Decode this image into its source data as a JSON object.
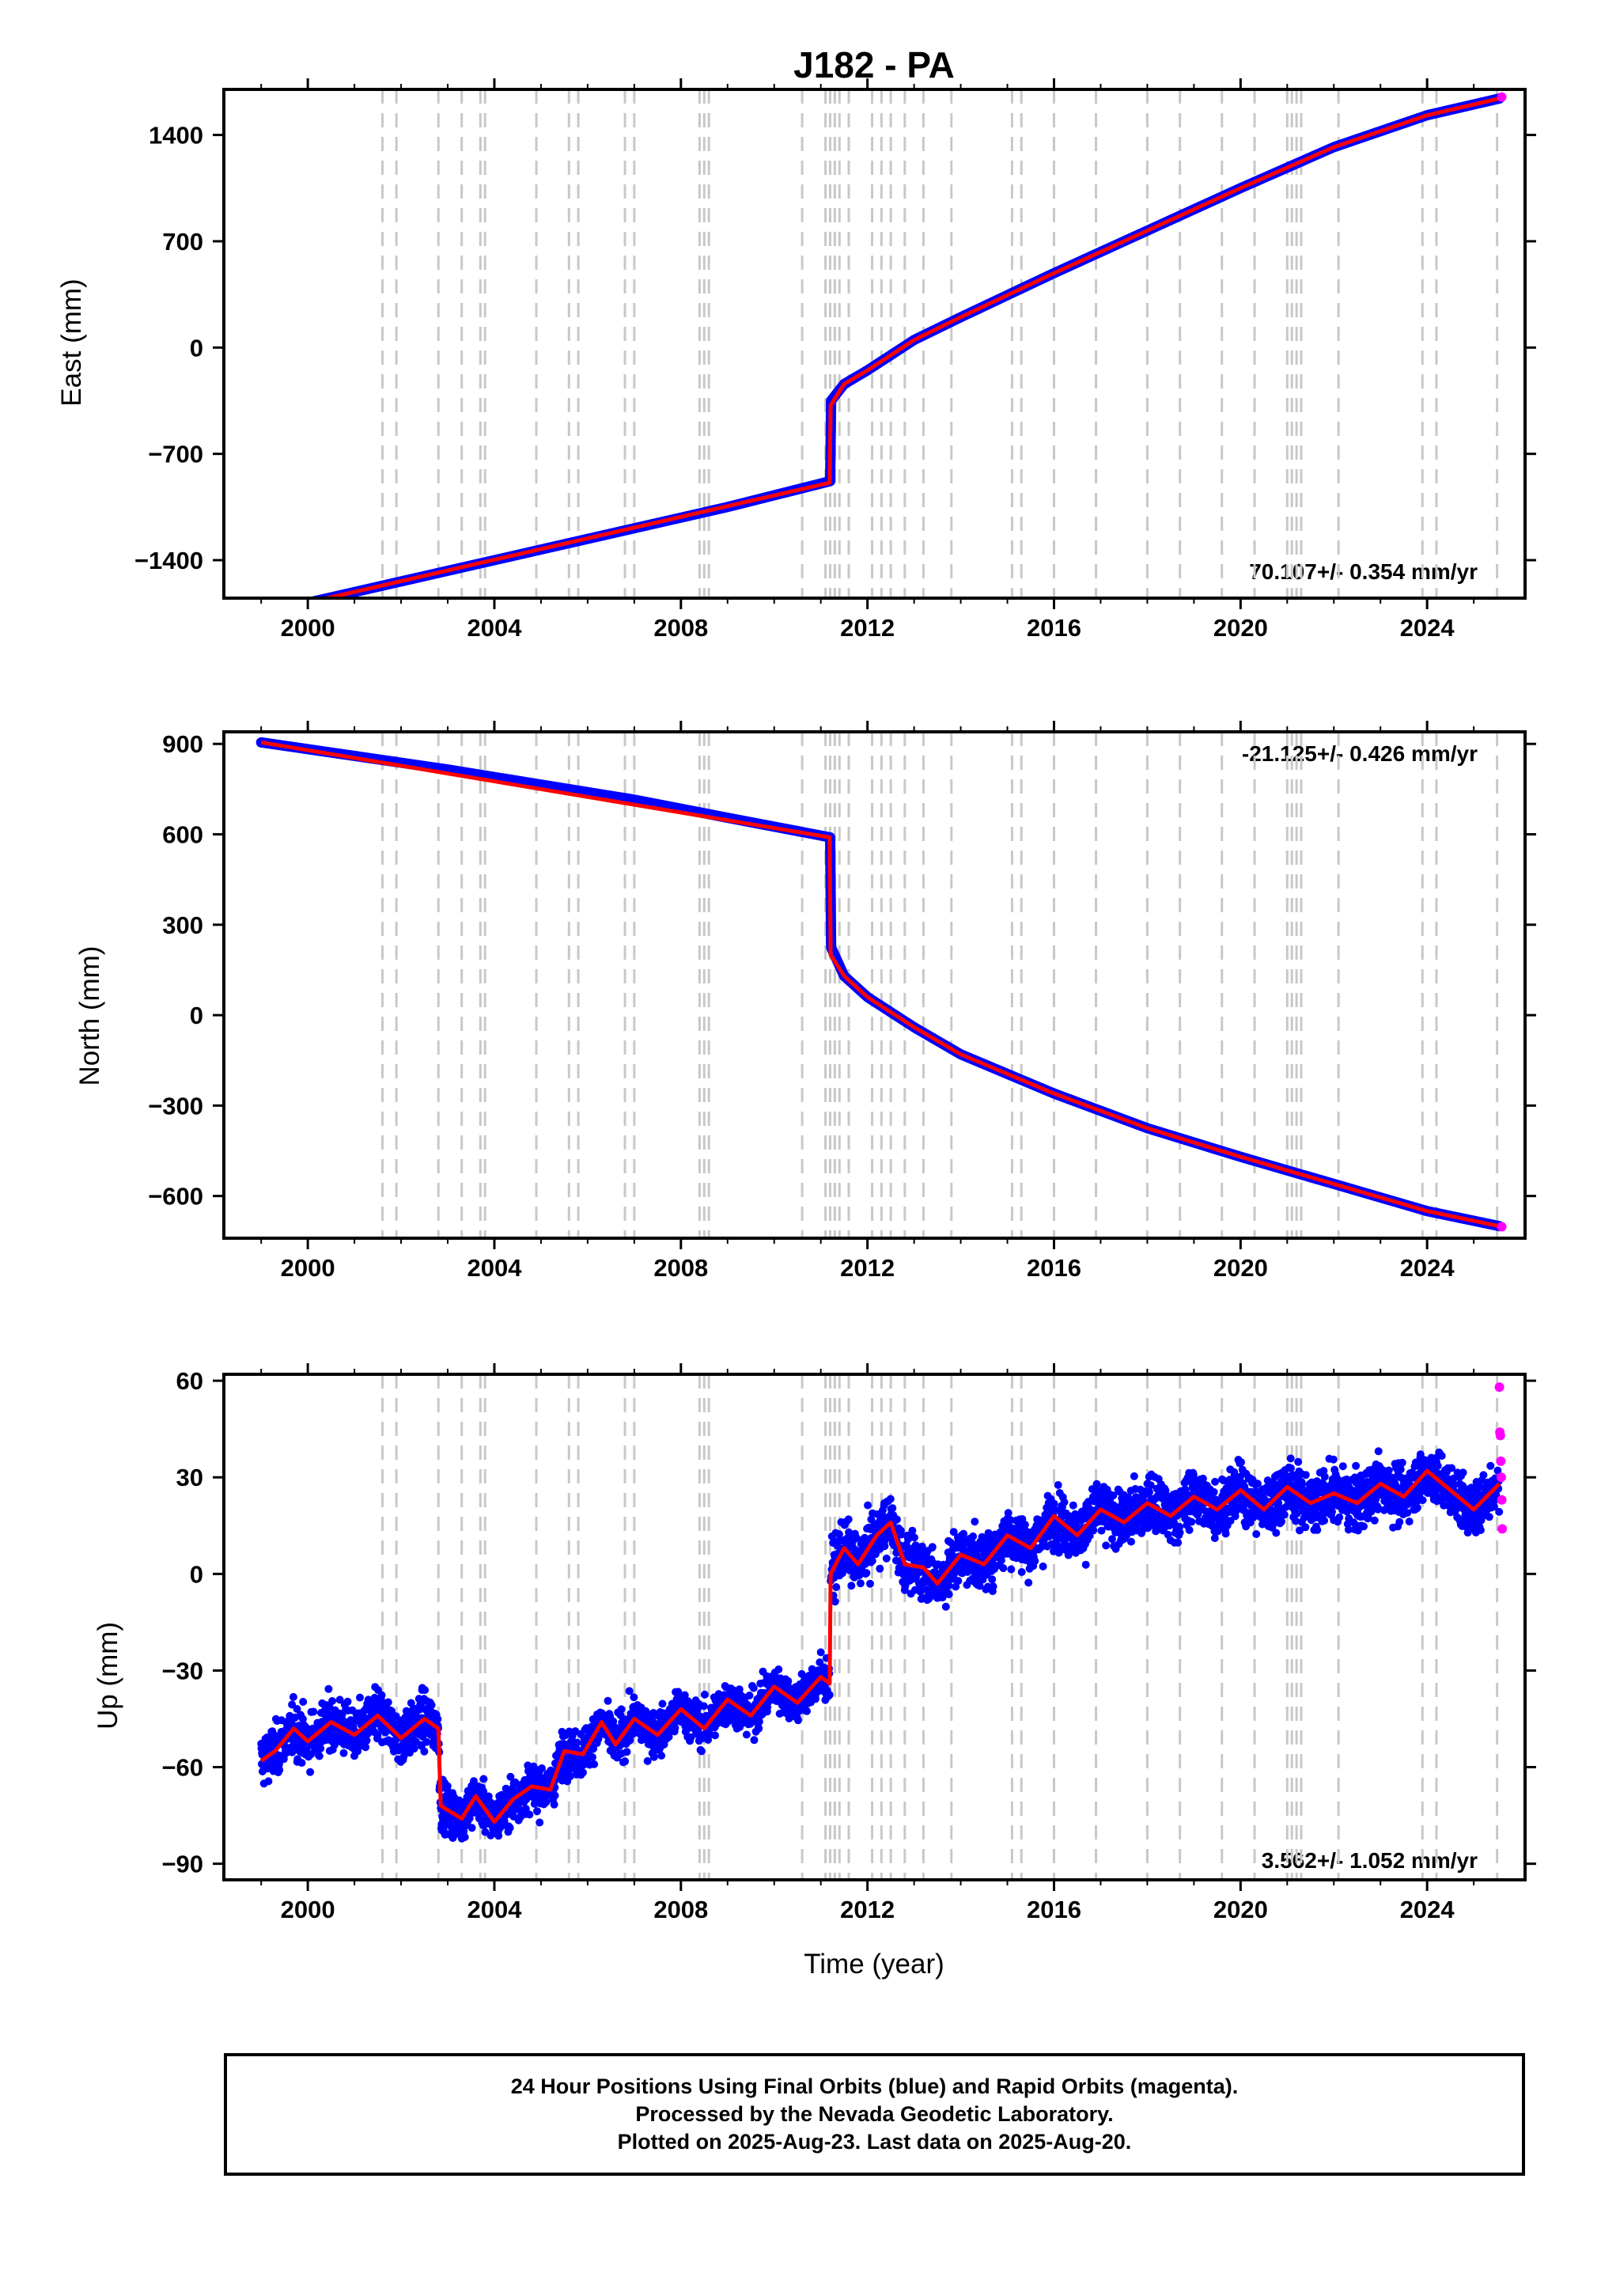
{
  "chart_data": [
    {
      "type": "scatter",
      "title": "J182 - PA",
      "ylabel": "East (mm)",
      "xlabel": "",
      "xlim": [
        1998.2,
        2026.1
      ],
      "ylim": [
        -1650,
        1700
      ],
      "xticks": [
        2000,
        2004,
        2008,
        2012,
        2016,
        2020,
        2024
      ],
      "yticks": [
        -1400,
        -700,
        0,
        700,
        1400
      ],
      "rate_label": "70.107+/- 0.354 mm/yr",
      "equipment_changes": [
        2001.6,
        2001.9,
        2002.8,
        2003.3,
        2003.7,
        2003.8,
        2004.9,
        2005.6,
        2005.8,
        2006.8,
        2007.0,
        2008.4,
        2008.5,
        2008.6,
        2010.6,
        2011.1,
        2011.2,
        2011.3,
        2011.4,
        2011.6,
        2012.1,
        2012.3,
        2012.5,
        2012.8,
        2013.2,
        2013.8,
        2015.1,
        2015.3,
        2016.0,
        2016.9,
        2018.0,
        2018.7,
        2019.6,
        2020.3,
        2021.0,
        2021.1,
        2021.2,
        2021.3,
        2022.1,
        2023.9,
        2024.2,
        2025.5
      ],
      "series": [
        {
          "name": "Final Orbits",
          "color": "#0000ff",
          "x": [
            1999.0,
            2001.0,
            2003.0,
            2005.0,
            2007.0,
            2009.0,
            2011.2,
            2011.22,
            2011.5,
            2012.0,
            2013.0,
            2014.0,
            2016.0,
            2018.0,
            2020.0,
            2022.0,
            2024.0,
            2025.55
          ],
          "y": [
            -1750,
            -1610,
            -1470,
            -1330,
            -1190,
            -1050,
            -880,
            -350,
            -240,
            -150,
            50,
            200,
            490,
            770,
            1050,
            1320,
            1530,
            1640
          ]
        },
        {
          "name": "Model",
          "color": "#ff0000",
          "x": [
            1999.0,
            2011.19,
            2011.21,
            2011.5,
            2012.0,
            2013.0,
            2014.0,
            2016.0,
            2018.0,
            2020.0,
            2022.0,
            2024.0,
            2025.55
          ],
          "y": [
            -1750,
            -890,
            -380,
            -240,
            -150,
            50,
            200,
            490,
            770,
            1050,
            1320,
            1530,
            1640
          ]
        },
        {
          "name": "Rapid Orbits",
          "color": "#ff00ff",
          "x": [
            2025.6
          ],
          "y": [
            1650
          ]
        }
      ]
    },
    {
      "type": "scatter",
      "title": "",
      "ylabel": "North (mm)",
      "xlabel": "",
      "xlim": [
        1998.2,
        2026.1
      ],
      "ylim": [
        -740,
        940
      ],
      "xticks": [
        2000,
        2004,
        2008,
        2012,
        2016,
        2020,
        2024
      ],
      "yticks": [
        -600,
        -300,
        0,
        300,
        600,
        900
      ],
      "rate_label": "-21.125+/- 0.426 mm/yr",
      "series": [
        {
          "name": "Final Orbits",
          "color": "#0000ff",
          "x": [
            1999.0,
            2001.0,
            2003.0,
            2005.0,
            2007.0,
            2009.0,
            2011.2,
            2011.22,
            2011.5,
            2012.0,
            2013.0,
            2014.0,
            2016.0,
            2018.0,
            2020.0,
            2022.0,
            2024.0,
            2025.55
          ],
          "y": [
            905,
            860,
            815,
            765,
            715,
            655,
            590,
            225,
            130,
            60,
            -40,
            -130,
            -260,
            -375,
            -470,
            -560,
            -650,
            -700
          ]
        },
        {
          "name": "Model",
          "color": "#ff0000",
          "x": [
            1999.0,
            2011.19,
            2011.21,
            2011.5,
            2012.0,
            2013.0,
            2014.0,
            2016.0,
            2018.0,
            2020.0,
            2022.0,
            2024.0,
            2025.55
          ],
          "y": [
            905,
            590,
            200,
            130,
            60,
            -40,
            -130,
            -260,
            -375,
            -470,
            -560,
            -650,
            -700
          ]
        },
        {
          "name": "Rapid Orbits",
          "color": "#ff00ff",
          "x": [
            2025.6
          ],
          "y": [
            -702
          ]
        }
      ]
    },
    {
      "type": "scatter",
      "title": "",
      "ylabel": "Up (mm)",
      "xlabel": "Time (year)",
      "xlim": [
        1998.2,
        2026.1
      ],
      "ylim": [
        -95,
        62
      ],
      "xticks": [
        2000,
        2004,
        2008,
        2012,
        2016,
        2020,
        2024
      ],
      "yticks": [
        -90,
        -60,
        -30,
        0,
        30,
        60
      ],
      "rate_label": "3.562+/- 1.052 mm/yr",
      "series": [
        {
          "name": "Model",
          "color": "#ff0000",
          "x": [
            1999.0,
            1999.3,
            1999.7,
            2000.0,
            2000.5,
            2001.0,
            2001.5,
            2002.0,
            2002.5,
            2002.8,
            2002.85,
            2003.3,
            2003.6,
            2004.0,
            2004.4,
            2004.8,
            2005.2,
            2005.5,
            2005.9,
            2006.3,
            2006.6,
            2007.0,
            2007.5,
            2008.0,
            2008.5,
            2009.0,
            2009.5,
            2010.0,
            2010.5,
            2011.0,
            2011.19,
            2011.21,
            2011.5,
            2011.8,
            2012.2,
            2012.5,
            2012.8,
            2013.2,
            2013.5,
            2014.0,
            2014.5,
            2015.0,
            2015.5,
            2016.0,
            2016.5,
            2017.0,
            2017.5,
            2018.0,
            2018.5,
            2019.0,
            2019.5,
            2020.0,
            2020.5,
            2021.0,
            2021.5,
            2022.0,
            2022.5,
            2023.0,
            2023.5,
            2024.0,
            2024.5,
            2025.0,
            2025.55
          ],
          "y": [
            -58,
            -55,
            -48,
            -52,
            -46,
            -50,
            -44,
            -51,
            -45,
            -48,
            -72,
            -76,
            -69,
            -77,
            -70,
            -66,
            -67,
            -55,
            -56,
            -46,
            -53,
            -45,
            -50,
            -42,
            -48,
            -39,
            -44,
            -35,
            -40,
            -32,
            -34,
            0,
            8,
            3,
            12,
            16,
            3,
            2,
            -3,
            6,
            3,
            12,
            8,
            18,
            12,
            20,
            16,
            22,
            18,
            24,
            20,
            26,
            20,
            27,
            22,
            25,
            22,
            28,
            24,
            32,
            26,
            20,
            28
          ]
        },
        {
          "name": "Rapid Orbits",
          "color": "#ff00ff",
          "x": [
            2025.55,
            2025.56,
            2025.57,
            2025.58,
            2025.59,
            2025.6,
            2025.61
          ],
          "y": [
            58,
            44,
            43,
            35,
            30,
            23,
            14
          ]
        }
      ]
    }
  ],
  "footer": {
    "line1": "24 Hour Positions Using Final Orbits (blue) and Rapid Orbits (magenta).",
    "line2": "Processed by the Nevada Geodetic Laboratory.",
    "line3": "Plotted on 2025-Aug-23. Last data on 2025-Aug-20."
  }
}
